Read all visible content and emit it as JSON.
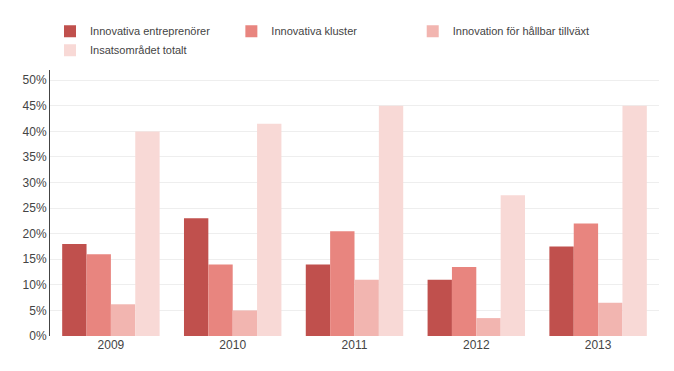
{
  "chart_data": {
    "type": "bar",
    "categories": [
      "2009",
      "2010",
      "2011",
      "2012",
      "2013"
    ],
    "series": [
      {
        "name": "Innovativa entreprenörer",
        "color": "#c0504d",
        "values": [
          0.18,
          0.23,
          0.14,
          0.11,
          0.175
        ]
      },
      {
        "name": "Innovativa kluster",
        "color": "#e8857f",
        "values": [
          0.16,
          0.14,
          0.205,
          0.135,
          0.22
        ]
      },
      {
        "name": "Innovation för hållbar tillväxt",
        "color": "#f2b5b0",
        "values": [
          0.062,
          0.05,
          0.11,
          0.035,
          0.065
        ]
      },
      {
        "name": "Insatsområdet totalt",
        "color": "#f8d9d6",
        "values": [
          0.4,
          0.415,
          0.45,
          0.275,
          0.45
        ]
      }
    ],
    "ylim": [
      0,
      0.52
    ],
    "yticks": [
      {
        "value": 0.0,
        "label": "0%"
      },
      {
        "value": 0.05,
        "label": "5%"
      },
      {
        "value": 0.1,
        "label": "10%"
      },
      {
        "value": 0.15,
        "label": "15%"
      },
      {
        "value": 0.2,
        "label": "20%"
      },
      {
        "value": 0.25,
        "label": "25%"
      },
      {
        "value": 0.3,
        "label": "30%"
      },
      {
        "value": 0.35,
        "label": "35%"
      },
      {
        "value": 0.4,
        "label": "40%"
      },
      {
        "value": 0.45,
        "label": "45%"
      },
      {
        "value": 0.5,
        "label": "50%"
      }
    ],
    "grid": true,
    "legend": "upper left"
  }
}
